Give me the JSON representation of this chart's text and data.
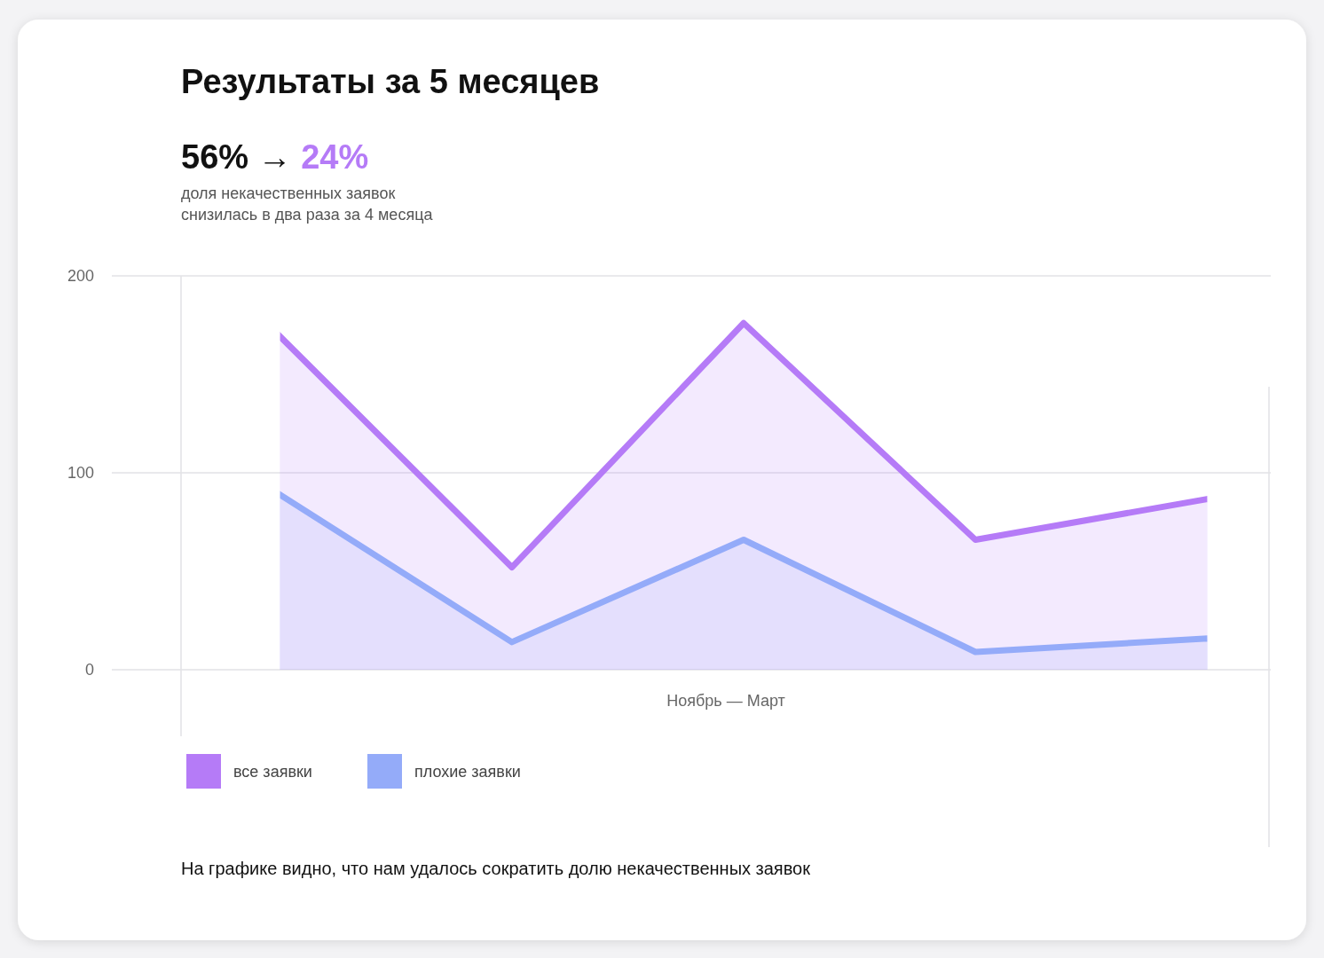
{
  "chart_data": {
    "type": "area",
    "title": "Результаты за 5 месяцев",
    "subtitle": "56% → 24%",
    "xlabel": "Ноябрь — Март",
    "categories": [
      null,
      null,
      null,
      null,
      null
    ],
    "series": [
      {
        "name": "все заявки",
        "color": "#b57bf7",
        "values": [
          171,
          52,
          176,
          66,
          87
        ]
      },
      {
        "name": "плохие заявки",
        "color": "#94abf9",
        "values": [
          90,
          14,
          66,
          9,
          16
        ]
      }
    ],
    "ylim": [
      0,
      200
    ],
    "yticks": [
      0,
      100,
      200
    ],
    "grid": "y",
    "legend": "bottom left",
    "annotations": [
      "доля некачественных заявок",
      "снизилась в два раза за 4 месяца",
      "На графике видно, что нам удалось сократить долю некачественных заявок"
    ]
  }
}
